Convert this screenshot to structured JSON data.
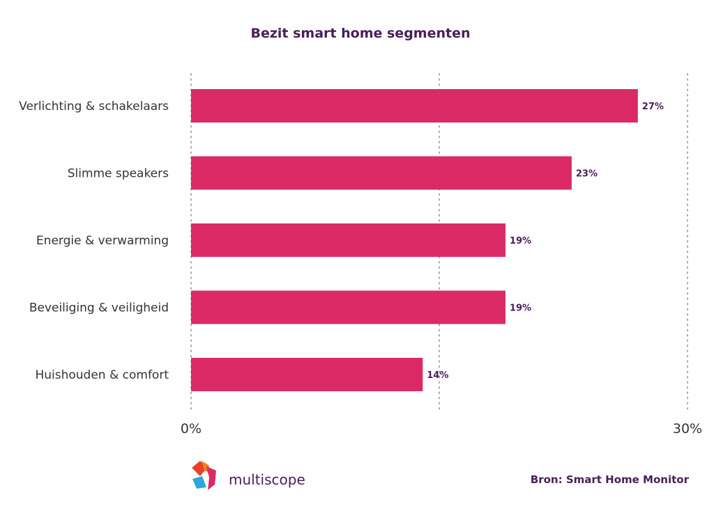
{
  "chart_data": {
    "type": "bar",
    "orientation": "horizontal",
    "title": "Bezit smart home segmenten",
    "categories": [
      "Verlichting & schakelaars",
      "Slimme speakers",
      "Energie & verwarming",
      "Beveiliging & veiligheid",
      "Huishouden & comfort"
    ],
    "values": [
      27,
      23,
      19,
      19,
      14
    ],
    "value_labels": [
      "27%",
      "23%",
      "19%",
      "19%",
      "14%"
    ],
    "xlim": [
      0,
      30
    ],
    "tick_labels": [
      "0%",
      "30%"
    ],
    "grid": true,
    "bar_color": "#db2a66"
  },
  "branding": {
    "logo_text": "multiscope",
    "source": "Bron: Smart Home Monitor"
  },
  "colors": {
    "title": "#4a1d5a",
    "bar": "#db2a66",
    "logo_red": "#e8412b",
    "logo_orange": "#f07d22",
    "logo_blue": "#2aa8dc",
    "logo_pink": "#db2a66"
  }
}
